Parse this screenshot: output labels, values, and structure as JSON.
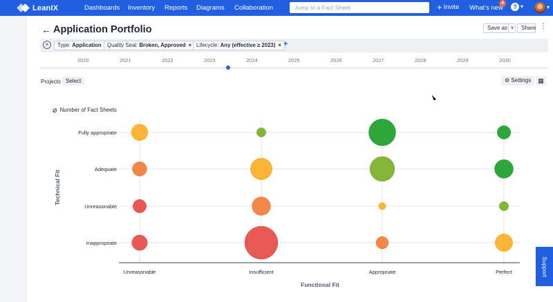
{
  "nav": {
    "brand": "LeanIX",
    "items": [
      "Dashboards",
      "Inventory",
      "Reports",
      "Diagrams",
      "Collaboration"
    ],
    "search_placeholder": "Jump to a Fact Sheet",
    "invite_label": "Invite",
    "whats_new_label": "What's new",
    "whats_new_count": "4",
    "help_label": "?"
  },
  "header": {
    "title": "Application Portfolio",
    "save_as_label": "Save as",
    "share_label": "Share"
  },
  "filters": [
    {
      "label": "Type: ",
      "value": "Application"
    },
    {
      "label": "Quality Seal: ",
      "value": "Broken, Approved"
    },
    {
      "label": "Lifecycle: ",
      "value": "Any (effective ≥ 2023)"
    }
  ],
  "timeline": {
    "years": [
      "2020",
      "2021",
      "2022",
      "2023",
      "2024",
      "2025",
      "2026",
      "2027",
      "2028",
      "2029",
      "2030"
    ],
    "selected_year": "2023"
  },
  "toolbar": {
    "projects_label": "Projects",
    "select_label": "Select",
    "settings_label": "Settings"
  },
  "legend": {
    "size_label": "Number of Fact Sheets"
  },
  "support_label": "Support",
  "colors": {
    "brand": "#1f5fe0",
    "fit_bad": "#e8504a",
    "fit_poor": "#f2813f",
    "fit_ok": "#fbb02a",
    "fit_good": "#7db12e",
    "fit_great": "#23a12f"
  },
  "chart_data": {
    "type": "scatter",
    "xlabel": "Functional Fit",
    "ylabel": "Technical Fit",
    "x_categories": [
      "Unreasonable",
      "Insufficient",
      "Appropriate",
      "Perfect"
    ],
    "y_categories": [
      "Inappropriate",
      "Unreasonable",
      "Adequate",
      "Fully appropriate"
    ],
    "size_metric": "Number of Fact Sheets",
    "points": [
      {
        "x": "Unreasonable",
        "y": "Fully appropriate",
        "size": 16,
        "color": "#fbb02a"
      },
      {
        "x": "Insufficient",
        "y": "Fully appropriate",
        "size": 9,
        "color": "#7db12e"
      },
      {
        "x": "Appropriate",
        "y": "Fully appropriate",
        "size": 26,
        "color": "#23a12f"
      },
      {
        "x": "Perfect",
        "y": "Fully appropriate",
        "size": 13,
        "color": "#23a12f"
      },
      {
        "x": "Unreasonable",
        "y": "Adequate",
        "size": 14,
        "color": "#f2813f"
      },
      {
        "x": "Insufficient",
        "y": "Adequate",
        "size": 21,
        "color": "#fbb02a"
      },
      {
        "x": "Appropriate",
        "y": "Adequate",
        "size": 24,
        "color": "#7db12e"
      },
      {
        "x": "Perfect",
        "y": "Adequate",
        "size": 18,
        "color": "#23a12f"
      },
      {
        "x": "Unreasonable",
        "y": "Unreasonable",
        "size": 13,
        "color": "#e8504a"
      },
      {
        "x": "Insufficient",
        "y": "Unreasonable",
        "size": 18,
        "color": "#f2813f"
      },
      {
        "x": "Appropriate",
        "y": "Unreasonable",
        "size": 7,
        "color": "#fbb02a"
      },
      {
        "x": "Perfect",
        "y": "Unreasonable",
        "size": 9,
        "color": "#7db12e"
      },
      {
        "x": "Unreasonable",
        "y": "Inappropriate",
        "size": 15,
        "color": "#e8504a"
      },
      {
        "x": "Insufficient",
        "y": "Inappropriate",
        "size": 32,
        "color": "#e8504a"
      },
      {
        "x": "Appropriate",
        "y": "Inappropriate",
        "size": 12,
        "color": "#f2813f"
      },
      {
        "x": "Perfect",
        "y": "Inappropriate",
        "size": 17,
        "color": "#fbb02a"
      }
    ]
  }
}
